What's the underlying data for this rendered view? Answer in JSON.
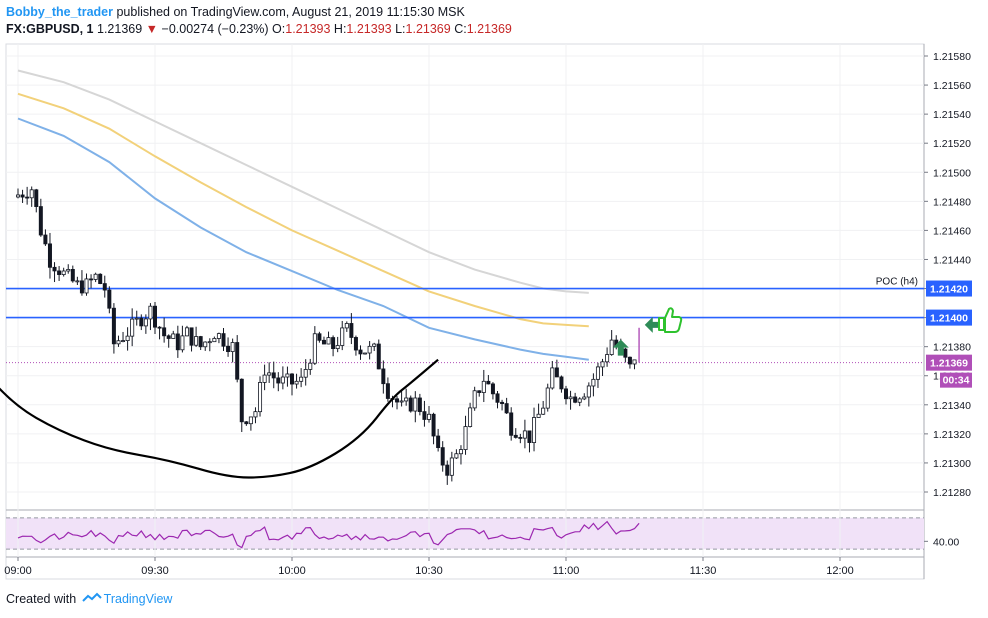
{
  "header": {
    "author": "Bobby_the_trader",
    "published_text": "published on TradingView.com, August 21, 2019 11:15:30 MSK",
    "symbol": "FX:GBPUSD, 1",
    "last": "1.21369",
    "change": "−0.00274 (−0.23%)",
    "o_label": "O:",
    "o_value": "1.21393",
    "h_label": "H:",
    "h_value": "1.21393",
    "l_label": "L:",
    "l_value": "1.21369",
    "c_label": "C:",
    "c_value": "1.21369"
  },
  "footer": {
    "created_with": "Created with",
    "brand": "TradingView"
  },
  "colors": {
    "up": "#131722",
    "down": "#131722",
    "ma_fast": "#7fb1e8",
    "ma_mid": "#f2d17a",
    "ma_slow": "#d6d6d6",
    "level": "#2962ff",
    "last_price": "#b04fb8",
    "rsi": "#9c27b0",
    "rsi_band": "#f1e2f8",
    "arrow": "#2e8b57",
    "thumb": "#2ec22e"
  },
  "chart_data": [
    {
      "type": "candlestick",
      "symbol": "FX:GBPUSD",
      "interval": "1",
      "y_ticks": [
        "1.21580",
        "1.21560",
        "1.21540",
        "1.21520",
        "1.21500",
        "1.21480",
        "1.21460",
        "1.21440",
        "1.21420",
        "1.21400",
        "1.21380",
        "1.21360",
        "1.21340",
        "1.21320",
        "1.21300",
        "1.21280"
      ],
      "x_ticks": [
        "09:00",
        "09:30",
        "10:00",
        "10:30",
        "11:00",
        "11:30",
        "12:00"
      ],
      "ylim": [
        1.2127,
        1.2159
      ],
      "xlim_minutes": [
        0,
        200
      ],
      "levels": [
        {
          "price": 1.2142,
          "label": "1.21420",
          "annotation": "POC (h4)"
        },
        {
          "price": 1.214,
          "label": "1.21400",
          "annotation": ""
        }
      ],
      "last_price": {
        "price": 1.21369,
        "label": "1.21369",
        "countdown": "00:34"
      },
      "moving_averages": [
        {
          "role": "fast",
          "points": [
            [
              0,
              1.21537
            ],
            [
              10,
              1.21525
            ],
            [
              20,
              1.21507
            ],
            [
              30,
              1.21482
            ],
            [
              40,
              1.21462
            ],
            [
              50,
              1.21445
            ],
            [
              60,
              1.21432
            ],
            [
              70,
              1.21419
            ],
            [
              80,
              1.21408
            ],
            [
              90,
              1.21393
            ],
            [
              100,
              1.21385
            ],
            [
              110,
              1.21378
            ],
            [
              115,
              1.21375
            ],
            [
              120,
              1.21373
            ],
            [
              125,
              1.21371
            ]
          ]
        },
        {
          "role": "mid",
          "points": [
            [
              0,
              1.21554
            ],
            [
              10,
              1.21544
            ],
            [
              20,
              1.2153
            ],
            [
              30,
              1.21511
            ],
            [
              40,
              1.21493
            ],
            [
              50,
              1.21476
            ],
            [
              60,
              1.2146
            ],
            [
              70,
              1.21446
            ],
            [
              80,
              1.21432
            ],
            [
              90,
              1.21418
            ],
            [
              100,
              1.21408
            ],
            [
              110,
              1.21399
            ],
            [
              115,
              1.21396
            ],
            [
              120,
              1.21395
            ],
            [
              125,
              1.21394
            ]
          ]
        },
        {
          "role": "slow",
          "points": [
            [
              0,
              1.2157
            ],
            [
              10,
              1.21562
            ],
            [
              20,
              1.2155
            ],
            [
              30,
              1.21535
            ],
            [
              40,
              1.2152
            ],
            [
              50,
              1.21505
            ],
            [
              60,
              1.2149
            ],
            [
              70,
              1.21475
            ],
            [
              80,
              1.2146
            ],
            [
              90,
              1.21445
            ],
            [
              100,
              1.21433
            ],
            [
              110,
              1.21424
            ],
            [
              115,
              1.2142
            ],
            [
              120,
              1.21418
            ],
            [
              125,
              1.21417
            ]
          ]
        }
      ],
      "annotation_curve": [
        [
          -10,
          1.21372
        ],
        [
          -1,
          1.2134
        ],
        [
          9,
          1.21322
        ],
        [
          20,
          1.21309
        ],
        [
          33,
          1.21302
        ],
        [
          46,
          1.2129
        ],
        [
          55,
          1.2129
        ],
        [
          64,
          1.21296
        ],
        [
          75,
          1.21317
        ],
        [
          82,
          1.21345
        ],
        [
          86,
          1.21355
        ],
        [
          92,
          1.21371
        ]
      ]
    },
    {
      "type": "line",
      "indicator": "RSI",
      "y_ticks": [
        "40.00"
      ],
      "ylim": [
        20,
        80
      ],
      "bands": [
        30,
        70
      ],
      "x_ticks": [
        "09:00",
        "09:30",
        "10:00",
        "10:30",
        "11:00",
        "11:30",
        "12:00"
      ]
    }
  ]
}
